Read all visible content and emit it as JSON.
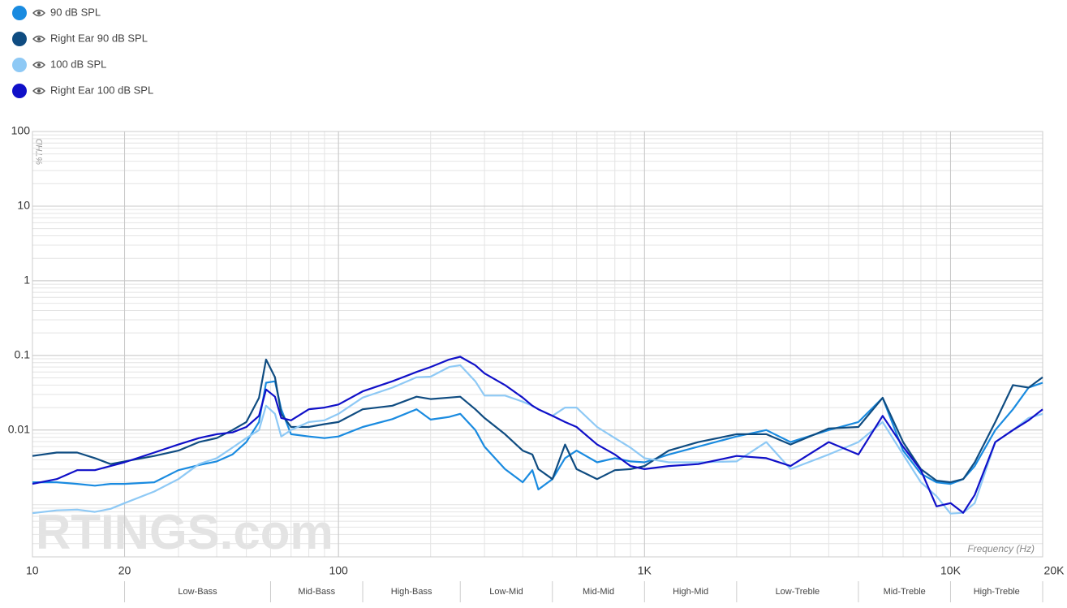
{
  "chart_data": {
    "type": "line",
    "y_label": "%THD",
    "x_label": "Frequency (Hz)",
    "watermark": "RTINGS.com",
    "log_x": true,
    "log_y": true,
    "grid": true,
    "legend": "top-left",
    "xlim": [
      10,
      20000
    ],
    "ylim": [
      0.0002,
      100
    ],
    "xticks": [
      10,
      20,
      100,
      {
        "value": 1000,
        "label": "1K"
      },
      {
        "value": 10000,
        "label": "10K"
      },
      {
        "value": 20000,
        "label": "20K"
      }
    ],
    "yticks": [
      100,
      10,
      1,
      0.1,
      0.01
    ],
    "bands": [
      {
        "label": "Low-Bass",
        "range": [
          20,
          60
        ]
      },
      {
        "label": "Mid-Bass",
        "range": [
          60,
          120
        ]
      },
      {
        "label": "High-Bass",
        "range": [
          120,
          250
        ]
      },
      {
        "label": "Low-Mid",
        "range": [
          250,
          500
        ]
      },
      {
        "label": "Mid-Mid",
        "range": [
          500,
          1000
        ]
      },
      {
        "label": "High-Mid",
        "range": [
          1000,
          2000
        ]
      },
      {
        "label": "Low-Treble",
        "range": [
          2000,
          5000
        ]
      },
      {
        "label": "Mid-Treble",
        "range": [
          5000,
          10000
        ]
      },
      {
        "label": "High-Treble",
        "range": [
          10000,
          20000
        ]
      }
    ],
    "x": [
      10,
      12,
      14,
      16,
      18,
      20,
      25,
      30,
      35,
      40,
      45,
      50,
      55,
      58,
      62,
      65,
      70,
      80,
      90,
      100,
      120,
      150,
      180,
      200,
      230,
      250,
      280,
      300,
      350,
      400,
      430,
      450,
      500,
      550,
      600,
      700,
      800,
      900,
      1000,
      1200,
      1500,
      2000,
      2500,
      3000,
      4000,
      5000,
      6000,
      7000,
      8000,
      9000,
      10000,
      11000,
      12000,
      14000,
      16000,
      18000,
      20000
    ],
    "series": [
      {
        "name": "90 dB SPL",
        "color": "#1a8be0",
        "values": [
          0.002,
          0.002,
          0.0019,
          0.0018,
          0.0019,
          0.0019,
          0.002,
          0.0029,
          0.0034,
          0.0038,
          0.0047,
          0.0069,
          0.0128,
          0.043,
          0.045,
          0.019,
          0.0088,
          0.0082,
          0.0078,
          0.0082,
          0.011,
          0.014,
          0.019,
          0.0138,
          0.015,
          0.0165,
          0.01,
          0.006,
          0.003,
          0.002,
          0.0029,
          0.0016,
          0.0022,
          0.0042,
          0.0053,
          0.0037,
          0.0042,
          0.0038,
          0.0037,
          0.0047,
          0.006,
          0.0082,
          0.01,
          0.0069,
          0.01,
          0.0128,
          0.027,
          0.0053,
          0.0026,
          0.002,
          0.0019,
          0.0022,
          0.0033,
          0.01,
          0.019,
          0.037,
          0.043
        ]
      },
      {
        "name": "Right Ear 90 dB SPL",
        "color": "#0f4c81",
        "values": [
          0.0045,
          0.005,
          0.005,
          0.0042,
          0.0035,
          0.0038,
          0.0045,
          0.0053,
          0.0069,
          0.0078,
          0.01,
          0.0128,
          0.027,
          0.088,
          0.0509,
          0.0165,
          0.011,
          0.011,
          0.012,
          0.0128,
          0.019,
          0.0212,
          0.028,
          0.026,
          0.0272,
          0.028,
          0.019,
          0.0145,
          0.0088,
          0.0053,
          0.0047,
          0.003,
          0.0022,
          0.0064,
          0.003,
          0.0022,
          0.0029,
          0.003,
          0.0033,
          0.0053,
          0.0069,
          0.0088,
          0.0088,
          0.0064,
          0.0105,
          0.011,
          0.027,
          0.0069,
          0.003,
          0.0021,
          0.002,
          0.0022,
          0.0037,
          0.0128,
          0.04,
          0.037,
          0.0509
        ]
      },
      {
        "name": "100 dB SPL",
        "color": "#8ec9f5",
        "values": [
          0.00077,
          0.00084,
          0.00086,
          0.0008,
          0.00088,
          0.00105,
          0.0015,
          0.0022,
          0.0035,
          0.0042,
          0.0058,
          0.0078,
          0.01,
          0.0212,
          0.0165,
          0.0082,
          0.01,
          0.0128,
          0.0135,
          0.0165,
          0.0272,
          0.037,
          0.0509,
          0.052,
          0.07,
          0.074,
          0.045,
          0.029,
          0.029,
          0.024,
          0.0212,
          0.019,
          0.0155,
          0.02,
          0.02,
          0.011,
          0.0078,
          0.0058,
          0.0042,
          0.0037,
          0.0037,
          0.0038,
          0.0069,
          0.003,
          0.0047,
          0.0069,
          0.0128,
          0.0047,
          0.002,
          0.0013,
          0.00076,
          0.00078,
          0.00105,
          0.0069,
          0.01,
          0.0145,
          0.0165
        ]
      },
      {
        "name": "Right Ear 100 dB SPL",
        "color": "#1010c8",
        "values": [
          0.0019,
          0.0022,
          0.0029,
          0.0029,
          0.0033,
          0.0037,
          0.005,
          0.0064,
          0.0078,
          0.0088,
          0.0093,
          0.011,
          0.0155,
          0.035,
          0.028,
          0.0145,
          0.0135,
          0.019,
          0.02,
          0.022,
          0.033,
          0.045,
          0.06,
          0.07,
          0.088,
          0.096,
          0.074,
          0.0576,
          0.04,
          0.0272,
          0.0212,
          0.019,
          0.0155,
          0.0128,
          0.011,
          0.0064,
          0.0047,
          0.0033,
          0.003,
          0.0033,
          0.0035,
          0.0045,
          0.0042,
          0.0033,
          0.0069,
          0.0047,
          0.0155,
          0.006,
          0.0029,
          0.00095,
          0.00105,
          0.00078,
          0.00135,
          0.0069,
          0.01,
          0.0135,
          0.019
        ]
      }
    ]
  }
}
